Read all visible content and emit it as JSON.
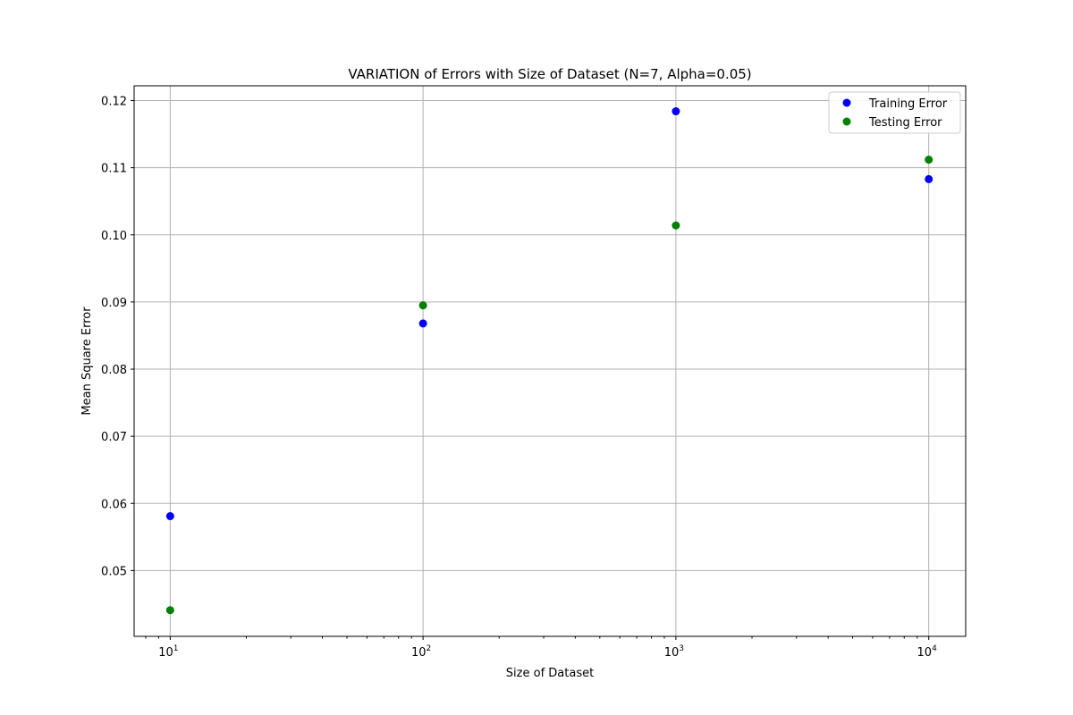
{
  "chart_data": {
    "type": "scatter",
    "title": "VARIATION of Errors with Size of Dataset (N=7, Alpha=0.05)",
    "xlabel": "Size of Dataset",
    "ylabel": "Mean Square Error",
    "xscale": "log",
    "xlim": [
      7.2,
      14000
    ],
    "ylim": [
      0.0402,
      0.1222
    ],
    "x_ticks": [
      {
        "value": 10,
        "base": "10",
        "exp": "1"
      },
      {
        "value": 100,
        "base": "10",
        "exp": "2"
      },
      {
        "value": 1000,
        "base": "10",
        "exp": "3"
      },
      {
        "value": 10000,
        "base": "10",
        "exp": "4"
      }
    ],
    "y_ticks": [
      {
        "value": 0.05,
        "label": "0.05"
      },
      {
        "value": 0.06,
        "label": "0.06"
      },
      {
        "value": 0.07,
        "label": "0.07"
      },
      {
        "value": 0.08,
        "label": "0.08"
      },
      {
        "value": 0.09,
        "label": "0.09"
      },
      {
        "value": 0.1,
        "label": "0.10"
      },
      {
        "value": 0.11,
        "label": "0.11"
      },
      {
        "value": 0.12,
        "label": "0.12"
      }
    ],
    "grid": true,
    "legend": "top-right",
    "series": [
      {
        "name": "Training Error",
        "color": "#0000ff",
        "points": [
          {
            "x": 10,
            "y": 0.0581
          },
          {
            "x": 100,
            "y": 0.0868
          },
          {
            "x": 1000,
            "y": 0.1184
          },
          {
            "x": 10000,
            "y": 0.1083
          }
        ]
      },
      {
        "name": "Testing Error",
        "color": "#008000",
        "points": [
          {
            "x": 10,
            "y": 0.0441
          },
          {
            "x": 100,
            "y": 0.0895
          },
          {
            "x": 1000,
            "y": 0.1014
          },
          {
            "x": 10000,
            "y": 0.1112
          }
        ]
      }
    ]
  }
}
